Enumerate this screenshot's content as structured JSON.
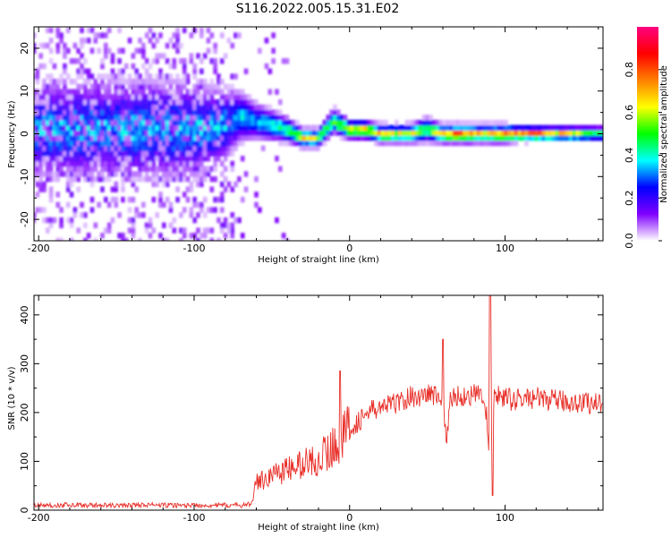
{
  "title": "S116.2022.005.15.31.E02",
  "chart_data": [
    {
      "type": "heatmap",
      "xlabel": "Height of straight line (km)",
      "ylabel": "Frequency (Hz)",
      "xlim": [
        -203,
        163
      ],
      "ylim": [
        -25,
        25
      ],
      "xticks": [
        "-200",
        "-100",
        "0",
        "100"
      ],
      "xtick_values": [
        -200,
        -100,
        0,
        100
      ],
      "yticks": [
        "20",
        "10",
        "0",
        "-10",
        "-20"
      ],
      "ytick_values": [
        20,
        10,
        0,
        -10,
        -20
      ],
      "colorbar": {
        "label": "Normalized spectral amplitude",
        "range": [
          0,
          1
        ],
        "ticks": [
          "0.0",
          "0.2",
          "0.4",
          "0.6",
          "0.8"
        ],
        "tick_values": [
          0.0,
          0.2,
          0.4,
          0.6,
          0.8
        ],
        "colors": [
          "#ffffff",
          "#8000ff",
          "#0000ff",
          "#00ffff",
          "#00ff00",
          "#ffff00",
          "#ff8000",
          "#ff0000",
          "#ff0080"
        ]
      },
      "ridge": {
        "x": [
          -200,
          -150,
          -100,
          -80,
          -70,
          -60,
          -50,
          -40,
          -30,
          -20,
          -10,
          0,
          10,
          20,
          30,
          40,
          50,
          60,
          70,
          80,
          90,
          100,
          110,
          120,
          130,
          140,
          150,
          163
        ],
        "freq": [
          1,
          1,
          1,
          2,
          4,
          3,
          2,
          1,
          -1,
          -1,
          3,
          1,
          1,
          0,
          0,
          0,
          1,
          0,
          0,
          0,
          0,
          0,
          0,
          0,
          0,
          0,
          0,
          0
        ],
        "amplitude": [
          0.15,
          0.15,
          0.15,
          0.25,
          0.4,
          0.35,
          0.45,
          0.5,
          0.7,
          0.6,
          0.55,
          0.7,
          0.75,
          0.7,
          0.65,
          0.7,
          0.5,
          0.75,
          0.85,
          0.75,
          0.7,
          0.8,
          0.85,
          0.85,
          0.75,
          0.7,
          0.6,
          0.5
        ],
        "bandwidth": [
          8,
          8,
          8,
          6,
          4,
          3,
          2.5,
          2,
          1.5,
          1.5,
          2,
          1.5,
          1.5,
          1.5,
          1.5,
          1.5,
          2,
          1.5,
          1.5,
          1.5,
          1.5,
          1.5,
          1.2,
          1.2,
          1.2,
          1.2,
          1.2,
          1.2
        ]
      }
    },
    {
      "type": "line",
      "xlabel": "Height of straight line (km)",
      "ylabel": "SNR (10 * v/v)",
      "xlim": [
        -203,
        163
      ],
      "ylim": [
        0,
        440
      ],
      "xticks": [
        "-200",
        "-100",
        "0",
        "100"
      ],
      "xtick_values": [
        -200,
        -100,
        0,
        100
      ],
      "yticks": [
        "400",
        "300",
        "200",
        "100",
        "0"
      ],
      "ytick_values": [
        400,
        300,
        200,
        100,
        0
      ],
      "color": "#e8302a",
      "series": [
        {
          "x": [
            -203,
            -190,
            -180,
            -170,
            -160,
            -150,
            -140,
            -130,
            -120,
            -110,
            -100,
            -90,
            -80,
            -70,
            -64,
            -62,
            -60,
            -55,
            -50,
            -45,
            -40,
            -35,
            -30,
            -25,
            -20,
            -15,
            -10,
            -7,
            -5,
            -3,
            0,
            5,
            10,
            15,
            20,
            25,
            30,
            35,
            40,
            45,
            50,
            55,
            60,
            62,
            65,
            70,
            75,
            80,
            85,
            88,
            90,
            92,
            95,
            100,
            105,
            110,
            120,
            130,
            140,
            150,
            163
          ],
          "y": [
            10,
            10,
            11,
            10,
            10,
            9,
            10,
            11,
            10,
            10,
            10,
            10,
            10,
            10,
            12,
            30,
            55,
            65,
            72,
            80,
            82,
            88,
            95,
            100,
            105,
            118,
            130,
            145,
            150,
            152,
            170,
            180,
            195,
            205,
            210,
            215,
            220,
            225,
            235,
            230,
            240,
            235,
            225,
            140,
            230,
            235,
            232,
            238,
            230,
            200,
            100,
            220,
            235,
            230,
            225,
            228,
            230,
            225,
            222,
            220,
            220
          ]
        }
      ]
    }
  ]
}
